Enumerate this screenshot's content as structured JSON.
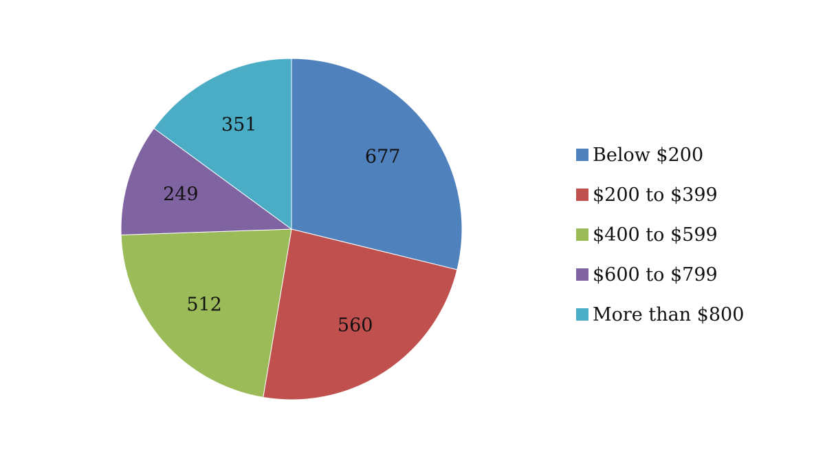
{
  "chart_data": {
    "type": "pie",
    "categories": [
      "Below $200",
      "$200 to $399",
      "$400 to $599",
      "$600 to $799",
      "More than $800"
    ],
    "values": [
      677,
      560,
      512,
      249,
      351
    ],
    "colors": [
      "#4F81BD",
      "#C0504D",
      "#9BBB59",
      "#8064A2",
      "#4BACC6"
    ],
    "data_labels": [
      "677",
      "560",
      "512",
      "249",
      "351"
    ],
    "start_angle": "12 o'clock",
    "direction": "clockwise",
    "legend_position": "right"
  }
}
